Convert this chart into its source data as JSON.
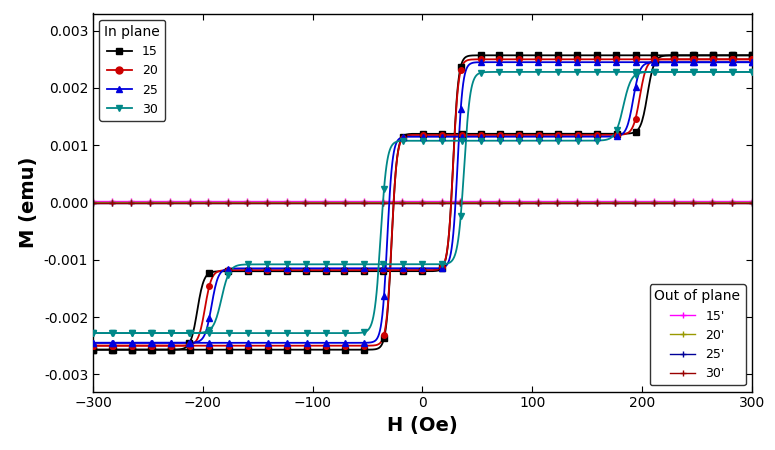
{
  "xlabel": "H (Oe)",
  "ylabel": "M (emu)",
  "xlim": [
    -300,
    300
  ],
  "ylim": [
    -0.0033,
    0.0033
  ],
  "in_plane": {
    "label": "In plane",
    "series": [
      {
        "label": "15",
        "color": "#000000",
        "marker": "s",
        "Ms": 0.00257,
        "Hc1": 205,
        "Hc2": 28,
        "M_inter": 0.0012,
        "dH1": 15,
        "dH2": 12
      },
      {
        "label": "20",
        "color": "#cc0000",
        "marker": "o",
        "Ms": 0.0025,
        "Hc1": 198,
        "Hc2": 28,
        "M_inter": 0.00118,
        "dH1": 15,
        "dH2": 12
      },
      {
        "label": "25",
        "color": "#0000dd",
        "marker": "^",
        "Ms": 0.00245,
        "Hc1": 192,
        "Hc2": 32,
        "M_inter": 0.00115,
        "dH1": 15,
        "dH2": 12
      },
      {
        "label": "30",
        "color": "#008888",
        "marker": "v",
        "Ms": 0.00228,
        "Hc1": 183,
        "Hc2": 38,
        "M_inter": 0.00108,
        "dH1": 18,
        "dH2": 14
      }
    ]
  },
  "out_of_plane": {
    "label": "Out of plane",
    "series": [
      {
        "label": "15'",
        "color": "#ff00ff",
        "slope": 0.0
      },
      {
        "label": "20'",
        "color": "#999900",
        "slope": 0.0
      },
      {
        "label": "25'",
        "color": "#000099",
        "slope": 0.0
      },
      {
        "label": "30'",
        "color": "#990000",
        "slope": 0.0
      }
    ]
  }
}
